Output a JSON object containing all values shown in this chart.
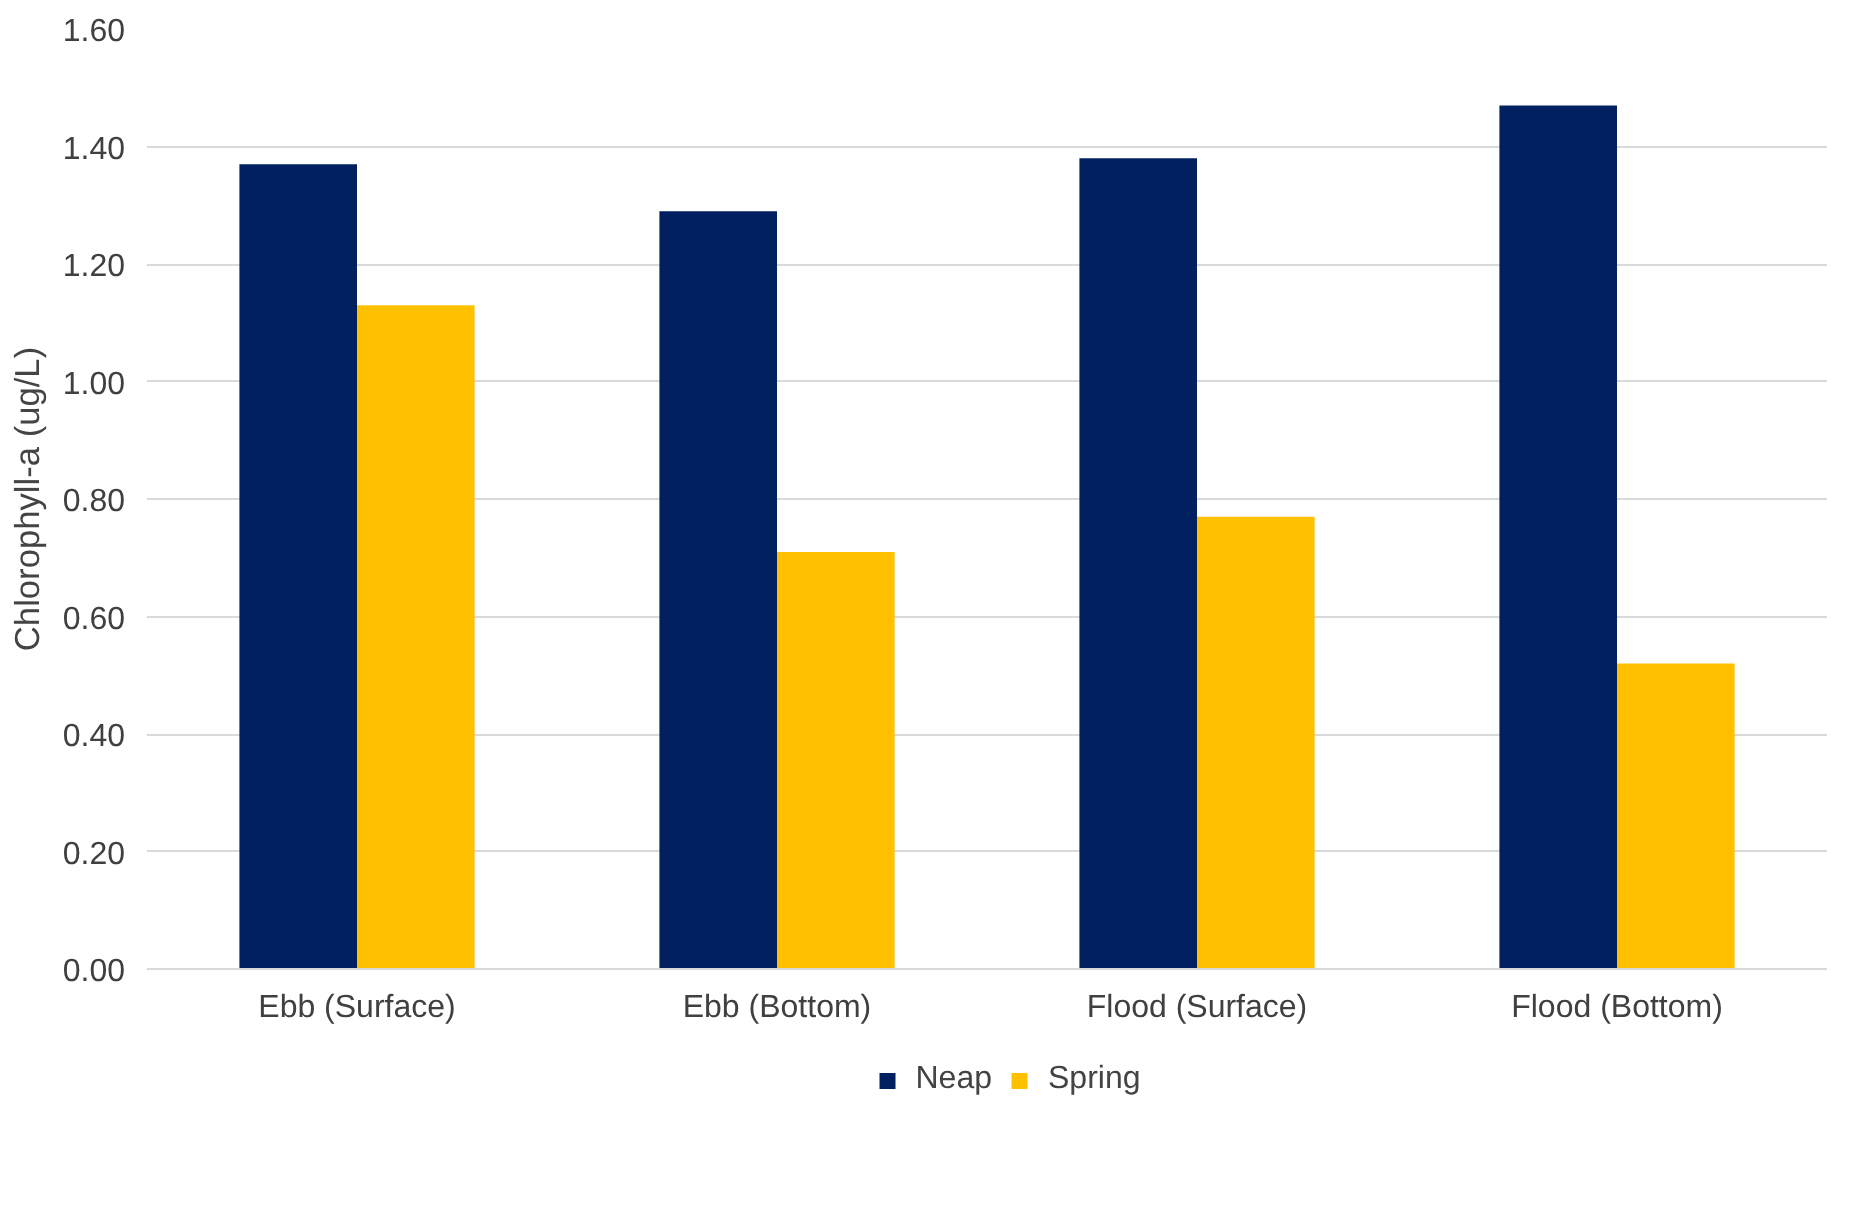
{
  "chart_data": {
    "type": "bar",
    "ylabel": "Chlorophyll-a (ug/L)",
    "categories": [
      "Ebb (Surface)",
      "Ebb (Bottom)",
      "Flood (Surface)",
      "Flood (Bottom)"
    ],
    "series": [
      {
        "name": "Neap",
        "color": "#002060",
        "values": [
          1.37,
          1.29,
          1.38,
          1.47
        ]
      },
      {
        "name": "Spring",
        "color": "#ffc000",
        "values": [
          1.13,
          0.71,
          0.77,
          0.52
        ]
      }
    ],
    "ylim": [
      0,
      1.6
    ],
    "yticks": [
      {
        "value": 0,
        "label": "0.00"
      },
      {
        "value": 0.2,
        "label": "0.20"
      },
      {
        "value": 0.4,
        "label": "0.40"
      },
      {
        "value": 0.6,
        "label": "0.60"
      },
      {
        "value": 0.8,
        "label": "0.80"
      },
      {
        "value": 1.0,
        "label": "1.00"
      },
      {
        "value": 1.2,
        "label": "1.20"
      },
      {
        "value": 1.4,
        "label": "1.40"
      },
      {
        "value": 1.6,
        "label": "1.60"
      }
    ],
    "grid": "y",
    "legend": "bottom"
  }
}
